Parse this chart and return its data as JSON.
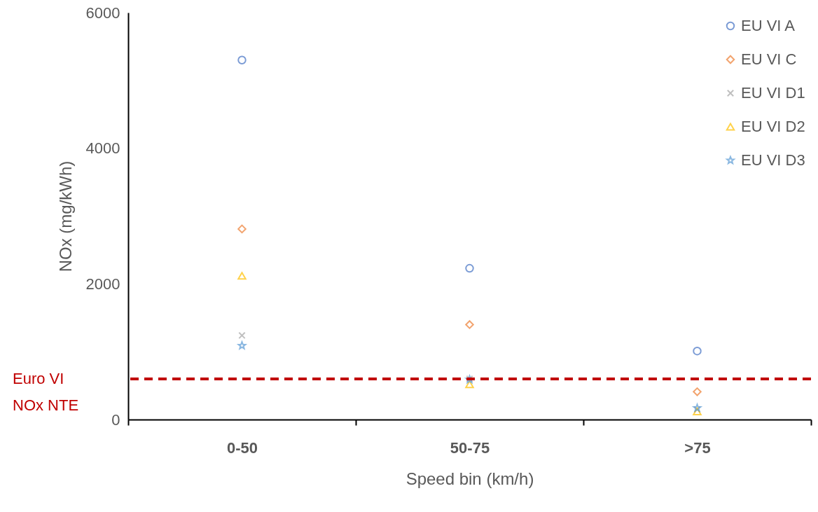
{
  "chart_data": {
    "type": "scatter",
    "xlabel": "Speed bin (km/h)",
    "ylabel": "NOx (mg/kWh)",
    "categories": [
      "0-50",
      "50-75",
      ">75"
    ],
    "series": [
      {
        "name": "EU VI A",
        "color": "#4472c4",
        "marker": "circle",
        "values": [
          5300,
          2230,
          1010
        ]
      },
      {
        "name": "EU VI C",
        "color": "#ed7d31",
        "marker": "diamond",
        "values": [
          2810,
          1400,
          410
        ]
      },
      {
        "name": "EU VI D1",
        "color": "#a5a5a5",
        "marker": "cross",
        "values": [
          1240,
          600,
          150
        ]
      },
      {
        "name": "EU VI D2",
        "color": "#ffc000",
        "marker": "triangle",
        "values": [
          2120,
          520,
          120
        ]
      },
      {
        "name": "EU VI D3",
        "color": "#5b9bd5",
        "marker": "star",
        "values": [
          1090,
          590,
          170
        ]
      }
    ],
    "ylim": [
      0,
      6000
    ],
    "yticks": [
      0,
      2000,
      4000,
      6000
    ],
    "grid": false,
    "legend": "top right",
    "ref_lines": [
      {
        "axis": "y",
        "value": 600,
        "label": "Euro VI\nNOx NTE",
        "color": "#c00000",
        "line_style": "dashed"
      }
    ]
  }
}
